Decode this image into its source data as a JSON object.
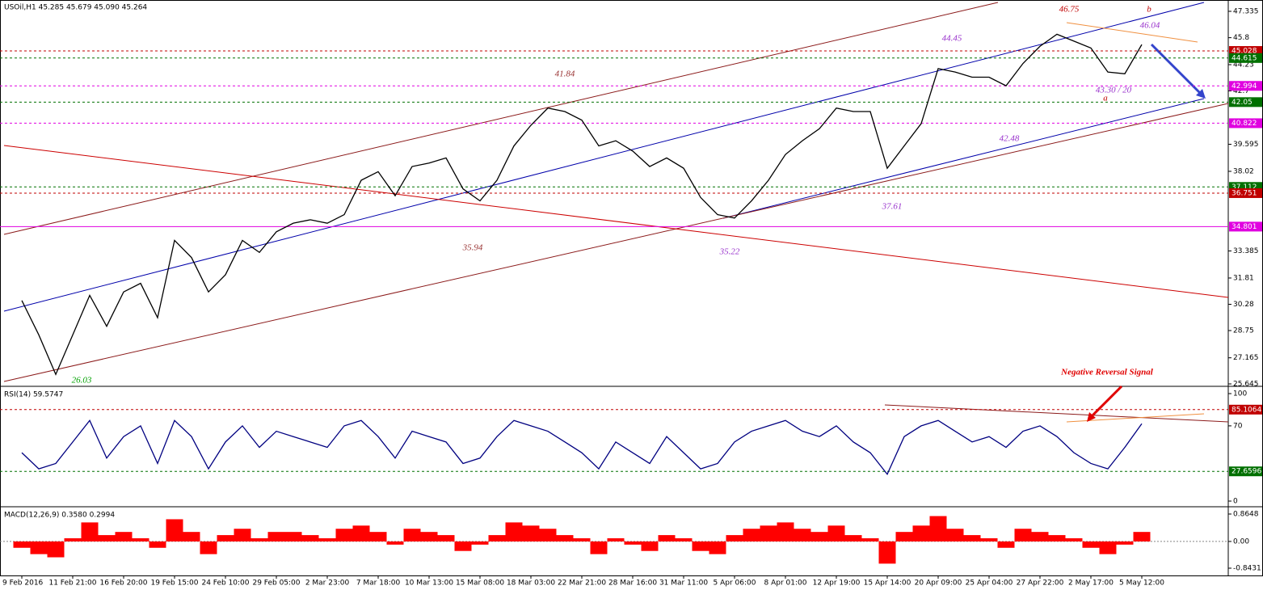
{
  "chart_data": [
    {
      "type": "line",
      "title": "USOil,H1  45.285 45.679 45.090 45.264",
      "categories": [
        "9 Feb 2016",
        null,
        null,
        "11 Feb 21:00",
        null,
        null,
        "16 Feb 20:00",
        null,
        null,
        "19 Feb 15:00",
        null,
        null,
        "24 Feb 10:00",
        null,
        null,
        "29 Feb 05:00",
        null,
        null,
        "2 Mar 23:00",
        null,
        null,
        "7 Mar 18:00",
        null,
        null,
        "10 Mar 13:00",
        null,
        null,
        "15 Mar 08:00",
        null,
        null,
        "18 Mar 03:00",
        null,
        null,
        "22 Mar 21:00",
        null,
        null,
        "28 Mar 16:00",
        null,
        null,
        "31 Mar 11:00",
        null,
        null,
        "5 Apr 06:00",
        null,
        null,
        "8 Apr 01:00",
        null,
        null,
        "12 Apr 19:00",
        null,
        null,
        "15 Apr 14:00",
        null,
        null,
        "20 Apr 09:00",
        null,
        null,
        "25 Apr 04:00",
        null,
        null,
        "27 Apr 22:00",
        null,
        null,
        "2 May 17:00",
        null,
        null,
        "5 May 12:00"
      ],
      "series": [
        {
          "name": "USOil",
          "color": "#000000",
          "values": [
            30.5,
            28.5,
            26.2,
            28.5,
            30.8,
            29.0,
            31.0,
            31.5,
            29.5,
            34.0,
            33.0,
            31.0,
            32.0,
            34.0,
            33.3,
            34.5,
            35.0,
            35.2,
            35.0,
            35.5,
            37.5,
            38.0,
            36.6,
            38.3,
            38.5,
            38.8,
            37.0,
            36.3,
            37.5,
            39.5,
            40.7,
            41.7,
            41.5,
            41.0,
            39.5,
            39.8,
            39.2,
            38.3,
            38.8,
            38.2,
            36.5,
            35.5,
            35.3,
            36.3,
            37.5,
            39.0,
            39.8,
            40.5,
            41.7,
            41.5,
            41.5,
            38.2,
            39.5,
            40.8,
            44.0,
            43.8,
            43.5,
            43.5,
            43.0,
            44.3,
            45.3,
            46.0,
            45.6,
            45.2,
            43.8,
            43.7,
            45.4
          ]
        }
      ],
      "ylim": [
        25.645,
        47.335
      ],
      "yticks": [
        47.335,
        45.8,
        44.23,
        42.7,
        39.595,
        38.02,
        33.385,
        31.81,
        30.28,
        28.75,
        27.165,
        25.645
      ],
      "levels": [
        {
          "value": 45.028,
          "color": "#c00000",
          "style": "dashed"
        },
        {
          "value": 44.615,
          "color": "#007000",
          "style": "dashed"
        },
        {
          "value": 42.994,
          "color": "#e000e0",
          "style": "dashed"
        },
        {
          "value": 42.05,
          "color": "#007000",
          "style": "dashed"
        },
        {
          "value": 40.822,
          "color": "#e000e0",
          "style": "dashed"
        },
        {
          "value": 37.112,
          "color": "#007000",
          "style": "dashed"
        },
        {
          "value": 36.751,
          "color": "#c00000",
          "style": "dashed"
        },
        {
          "value": 34.801,
          "color": "#e000e0",
          "style": "solid"
        }
      ],
      "annotations": [
        {
          "text": "46.75",
          "color": "#c00000"
        },
        {
          "text": "b",
          "color": "#c00000"
        },
        {
          "text": "46.04",
          "color": "#9933cc"
        },
        {
          "text": "44.45",
          "color": "#9933cc"
        },
        {
          "text": "41.84",
          "color": "#993333"
        },
        {
          "text": "43.30 / 20",
          "color": "#9933cc"
        },
        {
          "text": "a",
          "color": "#c00000"
        },
        {
          "text": "42.48",
          "color": "#9933cc"
        },
        {
          "text": "37.61",
          "color": "#9933cc"
        },
        {
          "text": "35.94",
          "color": "#993333"
        },
        {
          "text": "35.22",
          "color": "#9933cc"
        },
        {
          "text": "26.03",
          "color": "#00a000"
        }
      ]
    },
    {
      "type": "line",
      "title": "RSI(14) 59.5747",
      "series": [
        {
          "name": "RSI(14)",
          "color": "#000080",
          "values": [
            45,
            30,
            35,
            55,
            75,
            40,
            60,
            70,
            35,
            75,
            60,
            30,
            55,
            70,
            50,
            65,
            60,
            55,
            50,
            70,
            75,
            60,
            40,
            65,
            60,
            55,
            35,
            40,
            60,
            75,
            70,
            65,
            55,
            45,
            30,
            55,
            45,
            35,
            60,
            45,
            30,
            35,
            55,
            65,
            70,
            75,
            65,
            60,
            70,
            55,
            45,
            25,
            60,
            70,
            75,
            65,
            55,
            60,
            50,
            65,
            70,
            60,
            45,
            35,
            30,
            50,
            72
          ]
        }
      ],
      "ylim": [
        0,
        100
      ],
      "yticks": [
        100,
        70,
        0
      ],
      "levels": [
        {
          "value": 85.1064,
          "color": "#c00000",
          "style": "dashed"
        },
        {
          "value": 27.6596,
          "color": "#007000",
          "style": "dashed"
        }
      ],
      "annotations": [
        {
          "text": "Negative Reversal Signal",
          "color": "#e00000"
        }
      ]
    },
    {
      "type": "bar",
      "title": "MACD(12,26,9) 0.3580 0.2994",
      "series": [
        {
          "name": "MACD",
          "color": "#ff0000",
          "values": [
            -0.2,
            -0.4,
            -0.5,
            0.1,
            0.6,
            0.2,
            0.3,
            0.1,
            -0.2,
            0.7,
            0.3,
            -0.4,
            0.2,
            0.4,
            0.1,
            0.3,
            0.3,
            0.2,
            0.1,
            0.4,
            0.5,
            0.3,
            -0.1,
            0.4,
            0.3,
            0.2,
            -0.3,
            -0.1,
            0.2,
            0.6,
            0.5,
            0.4,
            0.2,
            0.1,
            -0.4,
            0.1,
            -0.1,
            -0.3,
            0.2,
            0.1,
            -0.3,
            -0.4,
            0.2,
            0.4,
            0.5,
            0.6,
            0.4,
            0.3,
            0.5,
            0.2,
            0.1,
            -0.7,
            0.3,
            0.5,
            0.8,
            0.4,
            0.2,
            0.1,
            -0.2,
            0.4,
            0.3,
            0.2,
            0.1,
            -0.2,
            -0.4,
            -0.1,
            0.3
          ]
        }
      ],
      "ylim": [
        -0.8431,
        0.8648
      ],
      "yticks": [
        0.8648,
        {
          "value": 0,
          "label": "0.00"
        },
        -0.8431
      ]
    }
  ]
}
